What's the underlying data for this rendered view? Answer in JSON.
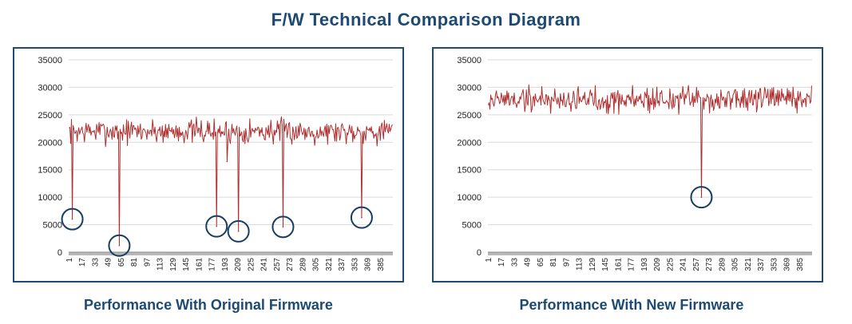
{
  "title": "F/W Technical Comparison Diagram",
  "colors": {
    "line": "#b02e2e",
    "circle": "#163e63",
    "grid": "#d9d9d9",
    "border": "#1f4b73",
    "title": "#1d4a72"
  },
  "chart_data": [
    {
      "type": "line",
      "caption": "Performance With Original Firmware",
      "ylim": [
        0,
        35000
      ],
      "yticks": [
        0,
        5000,
        10000,
        15000,
        20000,
        25000,
        30000,
        35000
      ],
      "ytick_labels": [
        "0",
        "5000",
        "10000",
        "15000",
        "20000",
        "25000",
        "30000",
        "35000"
      ],
      "x_count": 400,
      "xticks": [
        1,
        17,
        33,
        49,
        65,
        81,
        97,
        113,
        129,
        145,
        161,
        177,
        193,
        209,
        225,
        241,
        257,
        273,
        289,
        305,
        321,
        337,
        353,
        369,
        385
      ],
      "baseline": {
        "mean": 22000,
        "noise": 1100,
        "seed": 7
      },
      "dips": [
        {
          "x": 5,
          "y": 6000
        },
        {
          "x": 63,
          "y": 1200
        },
        {
          "x": 183,
          "y": 4700
        },
        {
          "x": 196,
          "y": 16500
        },
        {
          "x": 210,
          "y": 3800
        },
        {
          "x": 265,
          "y": 4600
        },
        {
          "x": 362,
          "y": 6300
        }
      ],
      "circled": [
        5,
        63,
        183,
        210,
        265,
        362
      ]
    },
    {
      "type": "line",
      "caption": "Performance With New Firmware",
      "ylim": [
        0,
        35000
      ],
      "yticks": [
        0,
        5000,
        10000,
        15000,
        20000,
        25000,
        30000,
        35000
      ],
      "ytick_labels": [
        "0",
        "5000",
        "10000",
        "15000",
        "20000",
        "25000",
        "30000",
        "35000"
      ],
      "x_count": 400,
      "xticks": [
        1,
        17,
        33,
        49,
        65,
        81,
        97,
        113,
        129,
        145,
        161,
        177,
        193,
        209,
        225,
        241,
        257,
        273,
        289,
        305,
        321,
        337,
        353,
        369,
        385
      ],
      "baseline": {
        "mean": 27800,
        "noise": 1200,
        "seed": 19
      },
      "dips": [
        {
          "x": 264,
          "y": 10000
        }
      ],
      "circled": [
        264
      ]
    }
  ]
}
